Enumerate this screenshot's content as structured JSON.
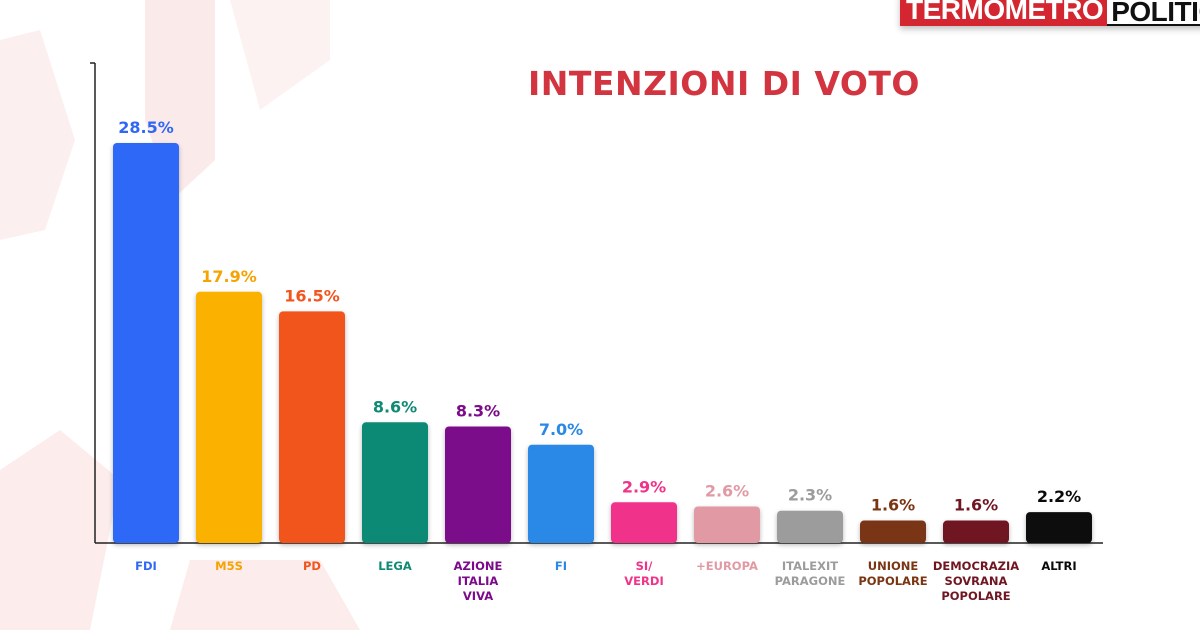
{
  "brand": {
    "part1": "TERMOMETRO",
    "part2": "POLITICO"
  },
  "colors": {
    "accent": "#d2353f",
    "watermark": "#fbeaea"
  },
  "chart_data": {
    "type": "bar",
    "title": "INTENZIONI DI VOTO",
    "xlabel": "",
    "ylabel": "",
    "ylim": [
      0,
      32
    ],
    "grid": false,
    "categories": [
      "FDI",
      "M5S",
      "PD",
      "LEGA",
      "AZIONE ITALIA VIVA",
      "FI",
      "SI/ VERDI",
      "+EUROPA",
      "ITALEXIT PARAGONE",
      "UNIONE POPOLARE",
      "DEMOCRAZIA SOVRANA POPOLARE",
      "ALTRI"
    ],
    "values": [
      28.5,
      17.9,
      16.5,
      8.6,
      8.3,
      7.0,
      2.9,
      2.6,
      2.3,
      1.6,
      1.6,
      2.2
    ],
    "value_labels": [
      "28.5%",
      "17.9%",
      "16.5%",
      "8.6%",
      "8.3%",
      "7.0%",
      "2.9%",
      "2.6%",
      "2.3%",
      "1.6%",
      "1.6%",
      "2.2%"
    ],
    "category_lines": [
      [
        "FDI"
      ],
      [
        "M5S"
      ],
      [
        "PD"
      ],
      [
        "LEGA"
      ],
      [
        "AZIONE",
        "ITALIA",
        "VIVA"
      ],
      [
        "FI"
      ],
      [
        "SI/",
        "VERDI"
      ],
      [
        "+EUROPA"
      ],
      [
        "ITALEXIT",
        "PARAGONE"
      ],
      [
        "UNIONE",
        "POPOLARE"
      ],
      [
        "DEMOCRAZIA",
        "SOVRANA",
        "POPOLARE"
      ],
      [
        "ALTRI"
      ]
    ],
    "bar_colors": [
      "#2f67f6",
      "#fbb104",
      "#f2541d",
      "#0f8a75",
      "#7b0b8a",
      "#2a88e6",
      "#f0338a",
      "#e19aa4",
      "#9c9c9c",
      "#7a3512",
      "#6f1622",
      "#0a0a0a"
    ],
    "label_colors": [
      "#2f67f6",
      "#f4a300",
      "#f2541d",
      "#0f8a75",
      "#7b0b8a",
      "#2a88e6",
      "#f0338a",
      "#e19aa4",
      "#9c9c9c",
      "#7a3512",
      "#6f1622",
      "#0a0a0a"
    ]
  }
}
